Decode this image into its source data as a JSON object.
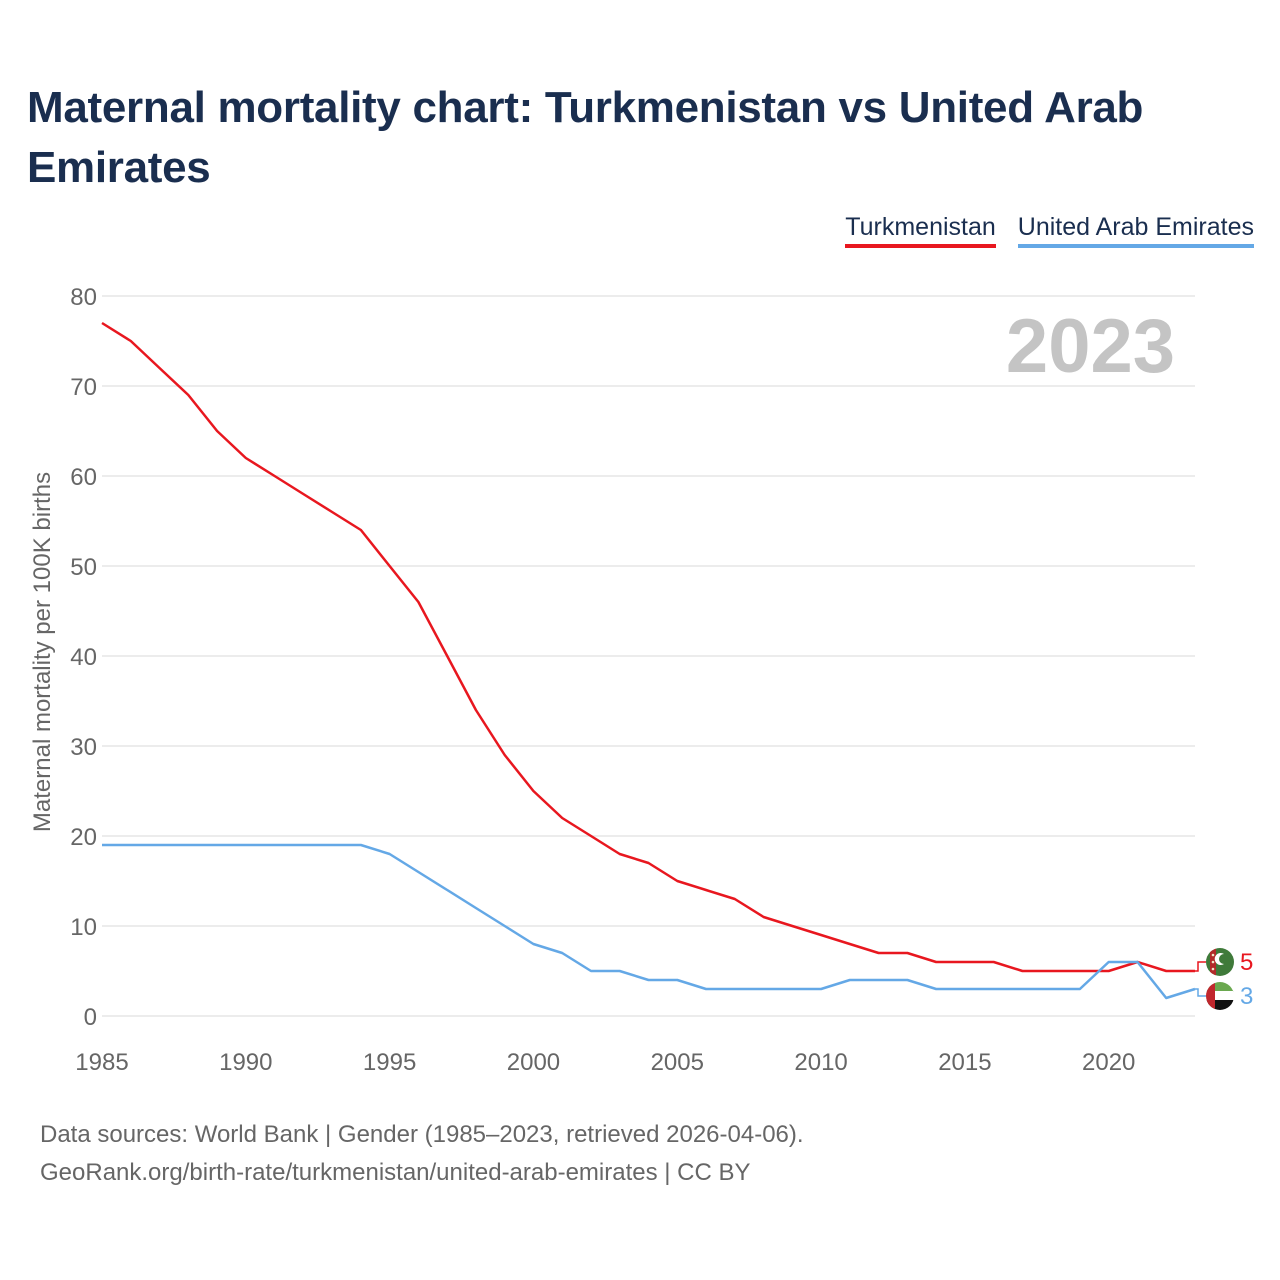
{
  "title": "Maternal mortality chart: Turkmenistan vs United Arab Emirates",
  "legend": [
    {
      "label": "Turkmenistan",
      "color": "#e8171f"
    },
    {
      "label": "United Arab Emirates",
      "color": "#64a8e6"
    }
  ],
  "year_label": "2023",
  "footer": {
    "line1": "Data sources: World Bank | Gender (1985–2023, retrieved 2026-04-06).",
    "line2": "GeoRank.org/birth-rate/turkmenistan/united-arab-emirates | CC BY"
  },
  "chart_data": {
    "type": "line",
    "title": "Maternal mortality chart: Turkmenistan vs United Arab Emirates",
    "xlabel": "",
    "ylabel": "Maternal mortality per 100K births",
    "xlim": [
      1985,
      2023
    ],
    "ylim": [
      0,
      80
    ],
    "x_ticks": [
      1985,
      1990,
      1995,
      2000,
      2005,
      2010,
      2015,
      2020
    ],
    "y_ticks": [
      0,
      10,
      20,
      30,
      40,
      50,
      60,
      70,
      80
    ],
    "grid": true,
    "x": [
      1985,
      1986,
      1987,
      1988,
      1989,
      1990,
      1991,
      1992,
      1993,
      1994,
      1995,
      1996,
      1997,
      1998,
      1999,
      2000,
      2001,
      2002,
      2003,
      2004,
      2005,
      2006,
      2007,
      2008,
      2009,
      2010,
      2011,
      2012,
      2013,
      2014,
      2015,
      2016,
      2017,
      2018,
      2019,
      2020,
      2021,
      2022,
      2023
    ],
    "series": [
      {
        "name": "Turkmenistan",
        "color": "#e8171f",
        "end_label": "5",
        "flag": "turkmenistan-flag-icon",
        "values": [
          77,
          75,
          72,
          69,
          65,
          62,
          60,
          58,
          56,
          54,
          50,
          46,
          40,
          34,
          29,
          25,
          22,
          20,
          18,
          17,
          15,
          14,
          13,
          11,
          10,
          9,
          8,
          7,
          7,
          6,
          6,
          6,
          5,
          5,
          5,
          5,
          6,
          5,
          5
        ]
      },
      {
        "name": "United Arab Emirates",
        "color": "#64a8e6",
        "end_label": "3",
        "flag": "uae-flag-icon",
        "values": [
          19,
          19,
          19,
          19,
          19,
          19,
          19,
          19,
          19,
          19,
          18,
          16,
          14,
          12,
          10,
          8,
          7,
          5,
          5,
          4,
          4,
          3,
          3,
          3,
          3,
          3,
          4,
          4,
          4,
          3,
          3,
          3,
          3,
          3,
          3,
          6,
          6,
          2,
          3
        ]
      }
    ]
  }
}
